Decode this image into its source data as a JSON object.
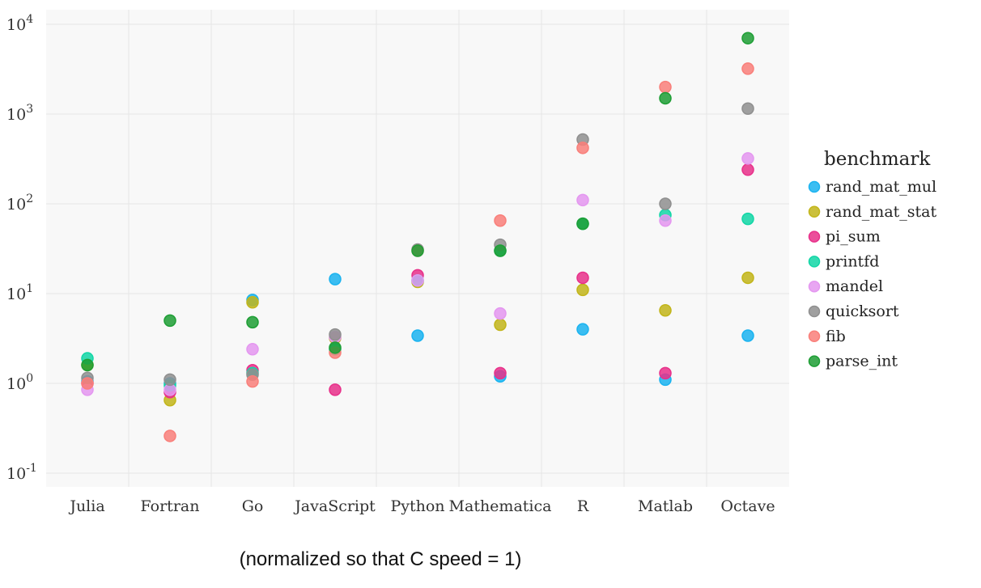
{
  "caption": "(normalized so that C speed = 1)",
  "chart_data": {
    "type": "scatter",
    "title": "",
    "xlabel": "",
    "ylabel": "",
    "yscale": "log",
    "ylim": [
      0.1,
      10000
    ],
    "ytick_values": [
      0.1,
      1,
      10,
      100,
      1000,
      10000
    ],
    "ytick_labels": [
      {
        "base": "10",
        "exp": "-1"
      },
      {
        "base": "10",
        "exp": "0"
      },
      {
        "base": "10",
        "exp": "1"
      },
      {
        "base": "10",
        "exp": "2"
      },
      {
        "base": "10",
        "exp": "3"
      },
      {
        "base": "10",
        "exp": "4"
      }
    ],
    "categories": [
      "Julia",
      "Fortran",
      "Go",
      "JavaScript",
      "Python",
      "Mathematica",
      "R",
      "Matlab",
      "Octave"
    ],
    "grid": true,
    "legend": {
      "title": "benchmark",
      "position": "right"
    },
    "series": [
      {
        "name": "rand_mat_mul",
        "color": "#1ab3f0",
        "values": [
          1.05,
          1.0,
          8.5,
          14.5,
          3.4,
          1.2,
          4.0,
          1.1,
          3.4
        ]
      },
      {
        "name": "rand_mat_stat",
        "color": "#c2b51a",
        "values": [
          1.6,
          0.65,
          8.0,
          3.2,
          13.5,
          4.5,
          11.0,
          6.5,
          15.0
        ]
      },
      {
        "name": "pi_sum",
        "color": "#e8308a",
        "values": [
          1.0,
          0.8,
          1.4,
          0.85,
          16.0,
          1.3,
          15.0,
          1.3,
          240
        ]
      },
      {
        "name": "printfd",
        "color": "#12d6a6",
        "values": [
          1.9,
          0.95,
          1.3,
          2.4,
          14.0,
          30.0,
          60.0,
          75.0,
          68.0
        ]
      },
      {
        "name": "mandel",
        "color": "#e497f0",
        "values": [
          0.85,
          0.85,
          2.4,
          3.3,
          14.0,
          6.0,
          110.0,
          65.0,
          320.0
        ]
      },
      {
        "name": "quicksort",
        "color": "#8f8f8f",
        "values": [
          1.15,
          1.1,
          1.25,
          3.5,
          31.0,
          35.0,
          520.0,
          100.0,
          1150.0
        ]
      },
      {
        "name": "fib",
        "color": "#f97f7a",
        "values": [
          1.0,
          0.26,
          1.05,
          2.2,
          30.0,
          65.0,
          420.0,
          2000.0,
          3200.0
        ]
      },
      {
        "name": "parse_int",
        "color": "#1e9e35",
        "values": [
          1.6,
          5.0,
          4.8,
          2.5,
          30.0,
          30.0,
          60.0,
          1500.0,
          7000.0
        ]
      }
    ]
  }
}
